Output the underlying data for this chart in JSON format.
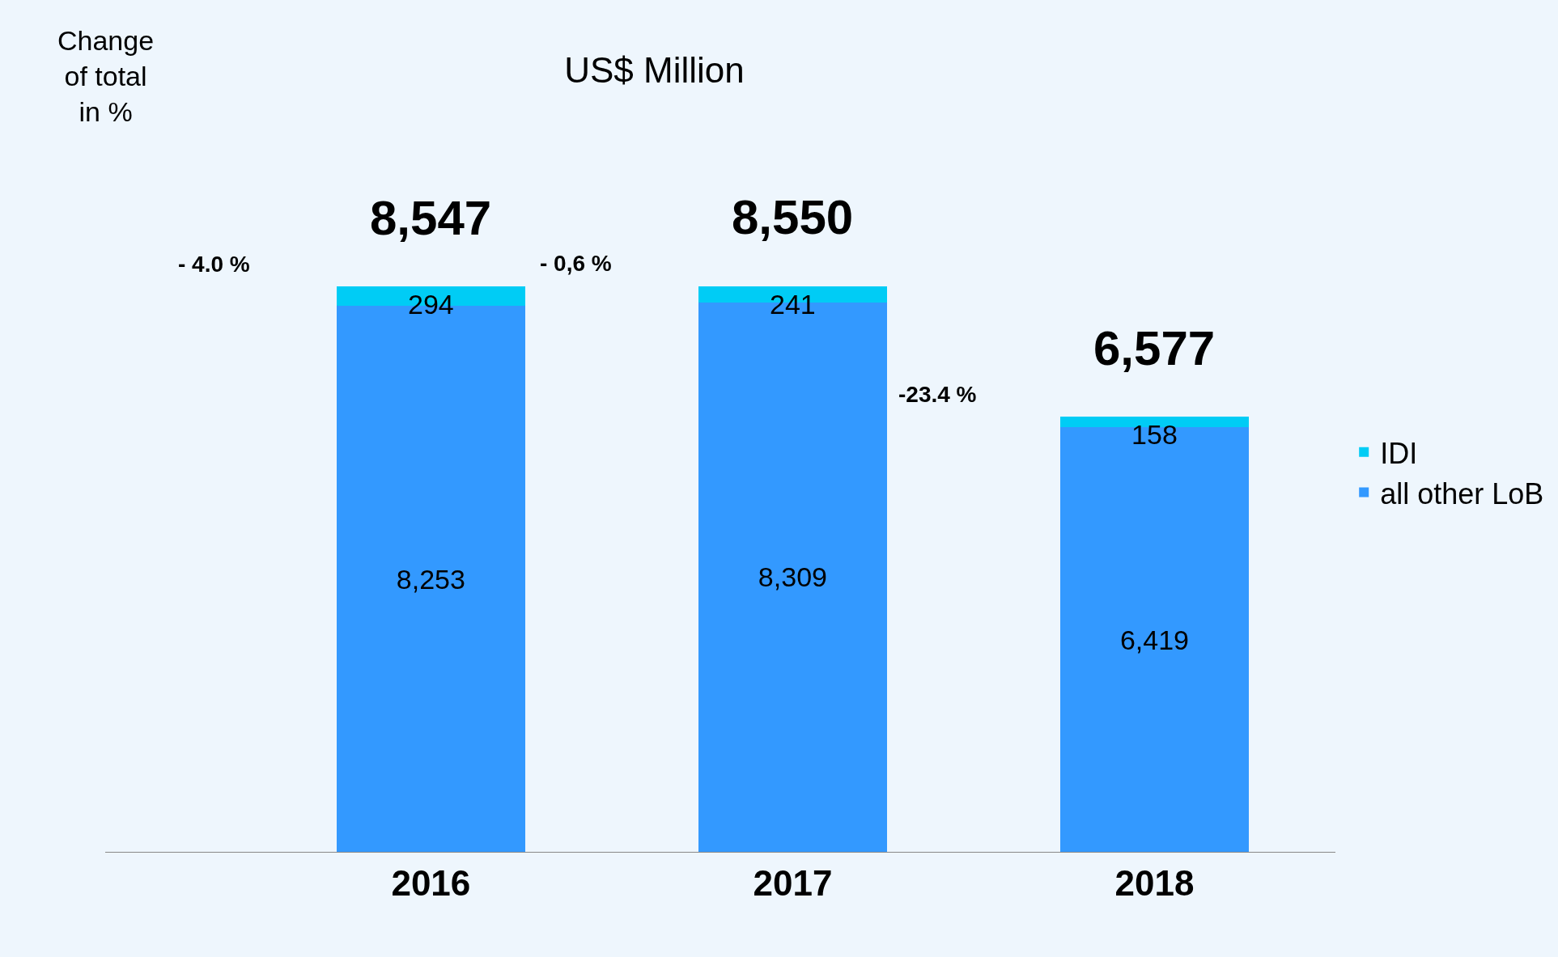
{
  "chart_data": {
    "type": "bar",
    "title": "US$ Million",
    "stacked": true,
    "categories": [
      "2016",
      "2017",
      "2018"
    ],
    "series": [
      {
        "name": "all other LoB",
        "color": "#3399ff",
        "values": [
          8253,
          8309,
          6419
        ],
        "value_labels": [
          "8,253",
          "8,309",
          "6,419"
        ]
      },
      {
        "name": "IDI",
        "color": "#00ccf5",
        "values": [
          294,
          241,
          158
        ],
        "value_labels": [
          "294",
          "241",
          "158"
        ]
      }
    ],
    "totals": [
      "8,547",
      "8,550",
      "6,577"
    ],
    "annotations": [
      "Change\nof total\nin %",
      "- 4.0 %",
      "- 0,6 %",
      "-23.4 %"
    ],
    "legend": "right",
    "tick_labels": "x"
  }
}
